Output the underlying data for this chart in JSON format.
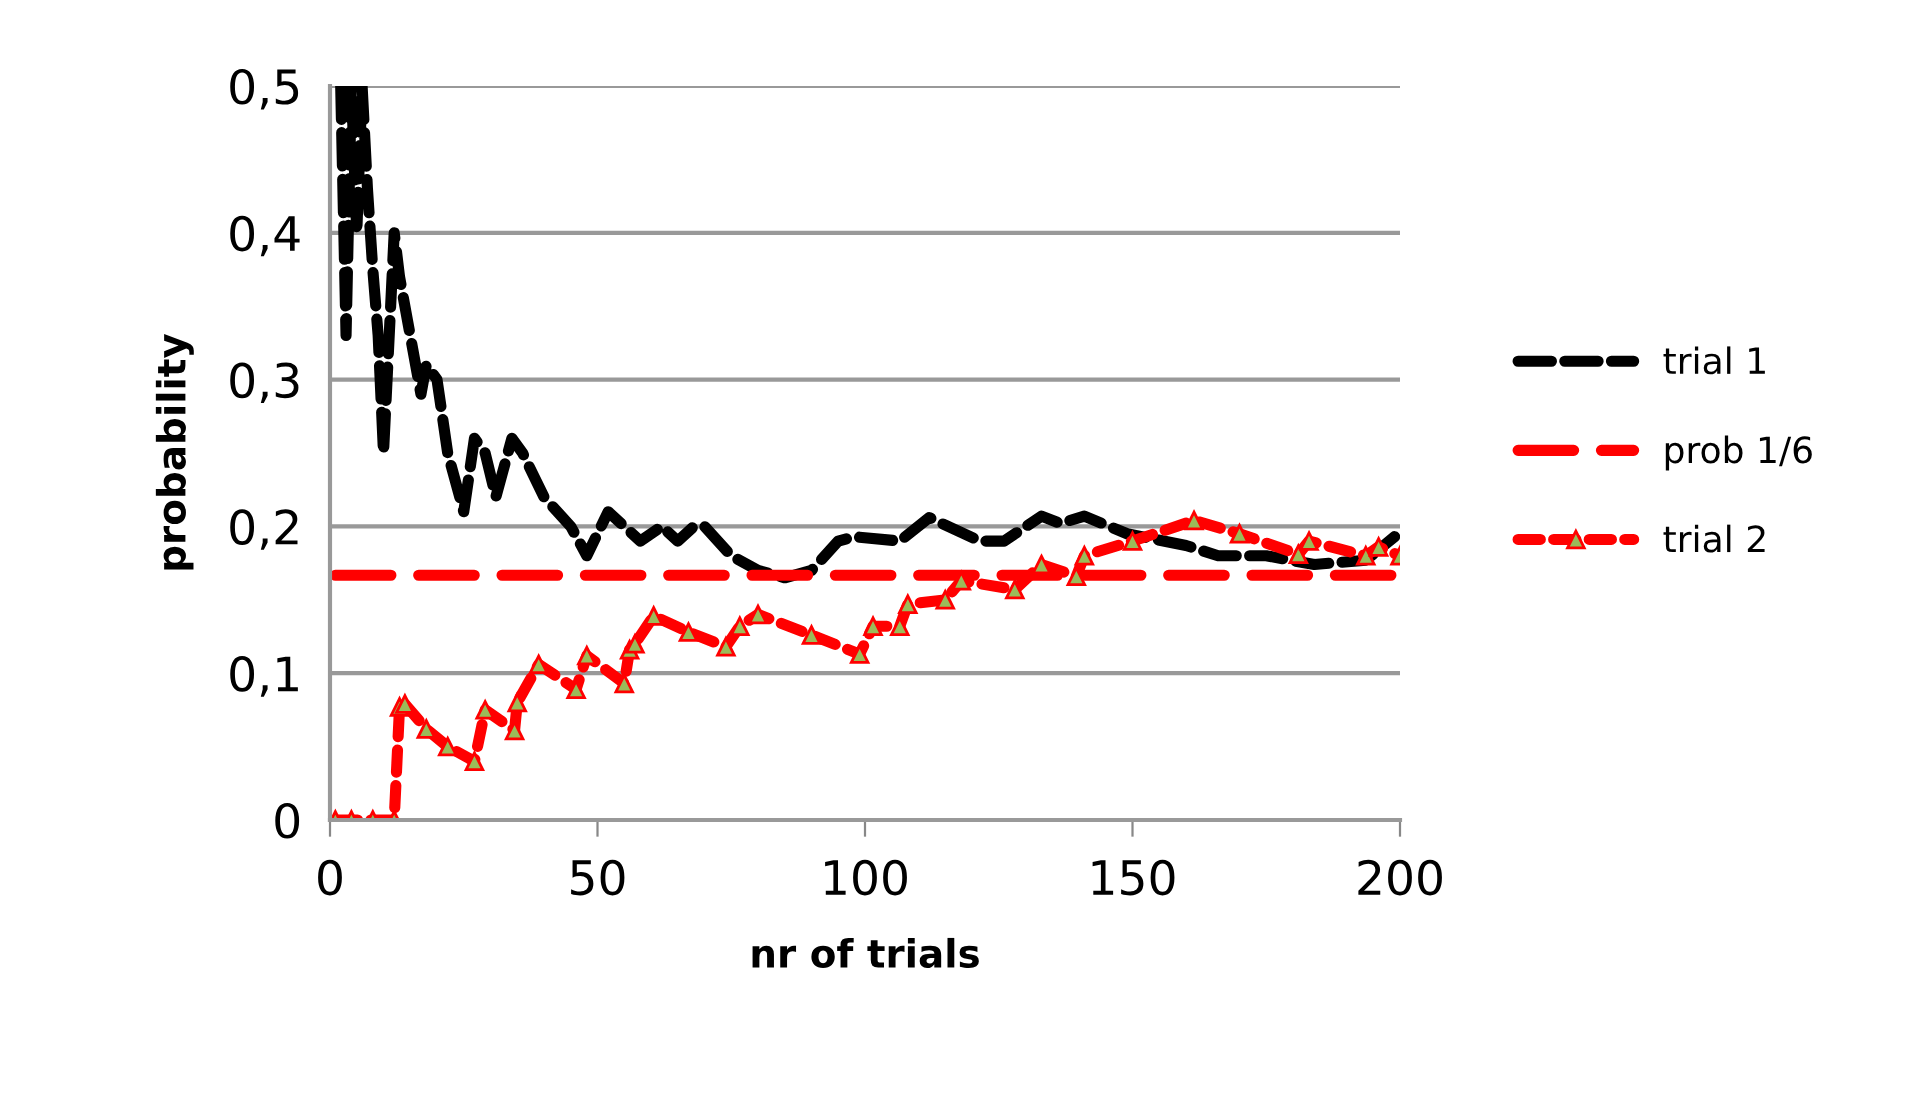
{
  "chart_data": {
    "type": "line",
    "xlabel": "nr of trials",
    "ylabel": "probability",
    "xlim": [
      0,
      200
    ],
    "xticks": [
      0,
      50,
      100,
      150,
      200
    ],
    "ylim": [
      0,
      0.5
    ],
    "yticks": [
      0,
      {
        "value": 0.1,
        "label": "0,1"
      },
      {
        "value": 0.2,
        "label": "0,2"
      },
      {
        "value": 0.3,
        "label": "0,3"
      },
      {
        "value": 0.4,
        "label": "0,4"
      },
      {
        "value": 0.5,
        "label": "0,5"
      }
    ],
    "grid": "y",
    "legend": "right",
    "series": [
      {
        "name": "trial 1",
        "color": "#000000",
        "line_style": "dashed",
        "marker": "none",
        "x": [
          2,
          3,
          4,
          5,
          6,
          7,
          8,
          9,
          10,
          12,
          13,
          15,
          17,
          18,
          20,
          22,
          25,
          27,
          29,
          31,
          34,
          36,
          40,
          45,
          48,
          52,
          55,
          58,
          62,
          65,
          68,
          70,
          75,
          80,
          85,
          90,
          95,
          98,
          106.5,
          112,
          121.5,
          126,
          133,
          136.5,
          141,
          149,
          160,
          166,
          175,
          184,
          193.6,
          199
        ],
        "values": [
          0.5,
          0.33,
          0.5,
          0.4,
          0.5,
          0.43,
          0.375,
          0.33,
          0.25,
          0.4,
          0.37,
          0.33,
          0.29,
          0.31,
          0.3,
          0.25,
          0.21,
          0.26,
          0.25,
          0.22,
          0.26,
          0.25,
          0.22,
          0.2,
          0.18,
          0.21,
          0.2,
          0.19,
          0.2,
          0.19,
          0.2,
          0.2,
          0.18,
          0.17,
          0.165,
          0.17,
          0.19,
          0.193,
          0.19,
          0.206,
          0.19,
          0.19,
          0.207,
          0.202,
          0.207,
          0.195,
          0.187,
          0.18,
          0.18,
          0.174,
          0.177,
          0.193
        ]
      },
      {
        "name": "prob 1/6",
        "color": "#ff0000",
        "line_style": "dashed",
        "marker": "none",
        "x": [
          1,
          200
        ],
        "values": [
          0.1667,
          0.1667
        ]
      },
      {
        "name": "trial 2",
        "color": "#ff0000",
        "line_style": "dotted",
        "marker": "triangle",
        "x": [
          1,
          4,
          8,
          12,
          13,
          14,
          18,
          22,
          27,
          29,
          34.5,
          35,
          39,
          46,
          48,
          55,
          56,
          57,
          60.5,
          67,
          74,
          76.6,
          80,
          90,
          99,
          101.5,
          106.5,
          108,
          115,
          118,
          128,
          133,
          139.5,
          141,
          150,
          161.5,
          170,
          181,
          183,
          193.6,
          196,
          200
        ],
        "values": [
          0,
          0,
          0,
          0,
          0.077,
          0.079,
          0.062,
          0.05,
          0.04,
          0.075,
          0.061,
          0.08,
          0.106,
          0.089,
          0.112,
          0.093,
          0.116,
          0.12,
          0.139,
          0.128,
          0.118,
          0.132,
          0.14,
          0.126,
          0.113,
          0.132,
          0.132,
          0.147,
          0.15,
          0.163,
          0.157,
          0.174,
          0.166,
          0.18,
          0.19,
          0.204,
          0.195,
          0.181,
          0.19,
          0.18,
          0.186,
          0.18
        ]
      }
    ]
  }
}
